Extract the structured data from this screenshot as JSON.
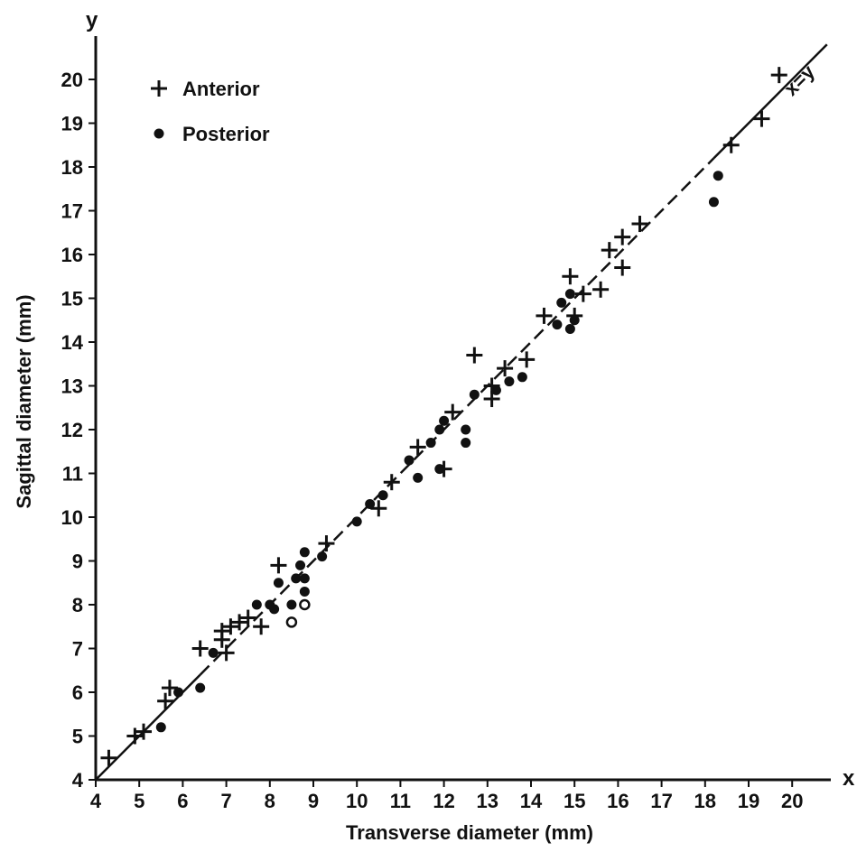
{
  "chart_data": {
    "type": "scatter",
    "xlabel": "Transverse diameter (mm)",
    "ylabel": "Sagittal diameter (mm)",
    "x_axis_letter": "x",
    "y_axis_letter": "y",
    "xlim": [
      4,
      21
    ],
    "ylim": [
      4,
      21
    ],
    "xticks": [
      4,
      5,
      6,
      7,
      8,
      9,
      10,
      11,
      12,
      13,
      14,
      15,
      16,
      17,
      18,
      19,
      20
    ],
    "yticks": [
      4,
      5,
      6,
      7,
      8,
      9,
      10,
      11,
      12,
      13,
      14,
      15,
      16,
      17,
      18,
      19,
      20
    ],
    "grid": false,
    "legend_position": "top-left",
    "reference_line": {
      "label": "x=y",
      "style": "solid, dashed through data cloud",
      "from": [
        4,
        4
      ],
      "to": [
        20.8,
        20.8
      ]
    },
    "series": [
      {
        "name": "Anterior",
        "marker": "plus",
        "color": "#111111",
        "points": [
          [
            4.3,
            4.5
          ],
          [
            4.9,
            5.0
          ],
          [
            5.1,
            5.1
          ],
          [
            5.6,
            5.8
          ],
          [
            5.7,
            6.1
          ],
          [
            6.4,
            7.0
          ],
          [
            6.9,
            7.2
          ],
          [
            6.9,
            7.4
          ],
          [
            7.0,
            6.9
          ],
          [
            7.1,
            7.5
          ],
          [
            7.3,
            7.6
          ],
          [
            7.5,
            7.7
          ],
          [
            7.8,
            7.5
          ],
          [
            8.2,
            8.9
          ],
          [
            9.3,
            9.4
          ],
          [
            10.5,
            10.2
          ],
          [
            10.8,
            10.8
          ],
          [
            11.4,
            11.6
          ],
          [
            12.0,
            11.1
          ],
          [
            12.2,
            12.4
          ],
          [
            12.7,
            13.7
          ],
          [
            13.1,
            12.7
          ],
          [
            13.1,
            13.0
          ],
          [
            13.4,
            13.4
          ],
          [
            13.9,
            13.6
          ],
          [
            14.3,
            14.6
          ],
          [
            14.9,
            15.5
          ],
          [
            15.0,
            14.6
          ],
          [
            15.2,
            15.1
          ],
          [
            15.6,
            15.2
          ],
          [
            15.8,
            16.1
          ],
          [
            16.1,
            15.7
          ],
          [
            16.1,
            16.4
          ],
          [
            16.5,
            16.7
          ],
          [
            18.6,
            18.5
          ],
          [
            19.3,
            19.1
          ],
          [
            19.7,
            20.1
          ]
        ]
      },
      {
        "name": "Posterior",
        "marker": "filled-circle",
        "color": "#111111",
        "points": [
          [
            5.5,
            5.2
          ],
          [
            5.9,
            6.0
          ],
          [
            6.4,
            6.1
          ],
          [
            6.7,
            6.9
          ],
          [
            7.7,
            8.0
          ],
          [
            8.0,
            8.0
          ],
          [
            8.1,
            7.9
          ],
          [
            8.2,
            8.5
          ],
          [
            8.5,
            8.0
          ],
          [
            8.6,
            8.6
          ],
          [
            8.7,
            8.9
          ],
          [
            8.8,
            8.6
          ],
          [
            8.8,
            9.2
          ],
          [
            8.8,
            8.3
          ],
          [
            9.2,
            9.1
          ],
          [
            10.0,
            9.9
          ],
          [
            10.3,
            10.3
          ],
          [
            10.6,
            10.5
          ],
          [
            11.2,
            11.3
          ],
          [
            11.4,
            10.9
          ],
          [
            11.7,
            11.7
          ],
          [
            11.9,
            11.1
          ],
          [
            11.9,
            12.0
          ],
          [
            12.0,
            12.2
          ],
          [
            12.5,
            12.0
          ],
          [
            12.5,
            11.7
          ],
          [
            12.7,
            12.8
          ],
          [
            13.2,
            12.9
          ],
          [
            13.5,
            13.1
          ],
          [
            13.8,
            13.2
          ],
          [
            14.6,
            14.4
          ],
          [
            14.7,
            14.9
          ],
          [
            14.9,
            15.1
          ],
          [
            14.9,
            14.3
          ],
          [
            15.0,
            14.5
          ],
          [
            18.2,
            17.2
          ],
          [
            18.3,
            17.8
          ]
        ]
      },
      {
        "name": "",
        "marker": "open-circle",
        "color": "#111111",
        "points": [
          [
            8.5,
            7.6
          ],
          [
            8.8,
            8.0
          ]
        ]
      }
    ]
  }
}
